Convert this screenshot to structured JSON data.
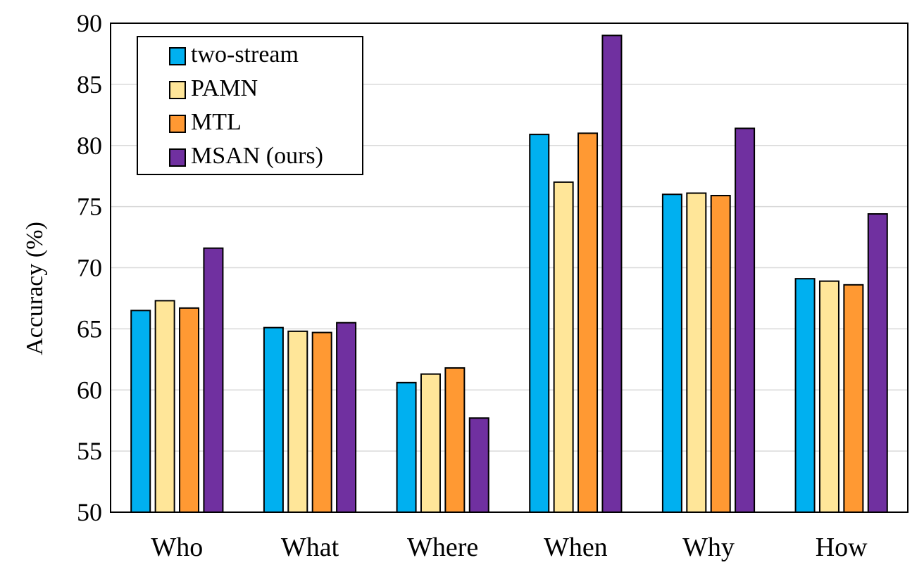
{
  "chart_data": {
    "type": "bar",
    "title": "",
    "xlabel": "",
    "ylabel": "Accuracy (%)",
    "ylim": [
      50,
      90
    ],
    "yticks": [
      50,
      55,
      60,
      65,
      70,
      75,
      80,
      85,
      90
    ],
    "grid": true,
    "legend_position": "top-left",
    "categories": [
      "Who",
      "What",
      "Where",
      "When",
      "Why",
      "How"
    ],
    "series": [
      {
        "name": "two-stream",
        "color": "#00b0f0",
        "values": [
          66.5,
          65.1,
          60.6,
          80.9,
          76.0,
          69.1
        ]
      },
      {
        "name": "PAMN",
        "color": "#ffe699",
        "values": [
          67.3,
          64.8,
          61.3,
          77.0,
          76.1,
          68.9
        ]
      },
      {
        "name": "MTL",
        "color": "#ff9933",
        "values": [
          66.7,
          64.7,
          61.8,
          81.0,
          75.9,
          68.6
        ]
      },
      {
        "name": "MSAN (ours)",
        "color": "#7030a0",
        "values": [
          71.6,
          65.5,
          57.7,
          89.0,
          81.4,
          74.4
        ]
      }
    ]
  }
}
